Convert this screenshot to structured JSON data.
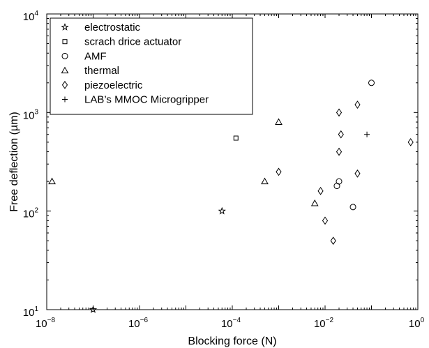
{
  "chart_data": {
    "type": "scatter",
    "title": "",
    "xlabel": "Blocking force (N)",
    "ylabel": "Free deflection (µm)",
    "xscale": "log",
    "yscale": "log",
    "xlim": [
      1e-08,
      1
    ],
    "ylim": [
      10,
      10000
    ],
    "x_ticks": [
      {
        "base": "10",
        "exp": "−8",
        "value": 1e-08
      },
      {
        "base": "10",
        "exp": "−6",
        "value": 1e-06
      },
      {
        "base": "10",
        "exp": "−4",
        "value": 0.0001
      },
      {
        "base": "10",
        "exp": "−2",
        "value": 0.01
      },
      {
        "base": "10",
        "exp": "0",
        "value": 1
      }
    ],
    "y_ticks": [
      {
        "base": "10",
        "exp": "1",
        "value": 10
      },
      {
        "base": "10",
        "exp": "2",
        "value": 100
      },
      {
        "base": "10",
        "exp": "3",
        "value": 1000
      },
      {
        "base": "10",
        "exp": "4",
        "value": 10000
      }
    ],
    "grid": false,
    "legend_position": "top-left",
    "series": [
      {
        "name": "electrostatic",
        "marker": "star",
        "points": [
          [
            1e-07,
            10
          ],
          [
            6e-05,
            100
          ]
        ]
      },
      {
        "name": "scrach drice actuator",
        "marker": "square",
        "points": [
          [
            0.00012,
            550
          ]
        ]
      },
      {
        "name": "AMF",
        "marker": "circle",
        "points": [
          [
            0.1,
            2000
          ],
          [
            0.02,
            200
          ],
          [
            0.018,
            180
          ],
          [
            0.04,
            110
          ]
        ]
      },
      {
        "name": "thermal",
        "marker": "triangle",
        "points": [
          [
            1.3e-08,
            200
          ],
          [
            0.001,
            800
          ],
          [
            0.0005,
            200
          ],
          [
            0.006,
            120
          ]
        ]
      },
      {
        "name": "piezoelectric",
        "marker": "diamond",
        "points": [
          [
            0.02,
            1000
          ],
          [
            0.05,
            1200
          ],
          [
            0.022,
            600
          ],
          [
            0.001,
            250
          ],
          [
            0.02,
            400
          ],
          [
            0.7,
            500
          ],
          [
            0.05,
            240
          ],
          [
            0.008,
            160
          ],
          [
            0.01,
            80
          ],
          [
            0.015,
            50
          ]
        ]
      },
      {
        "name": "LAB’s MMOC Microgripper",
        "marker": "plus",
        "points": [
          [
            0.08,
            600
          ]
        ]
      }
    ]
  }
}
